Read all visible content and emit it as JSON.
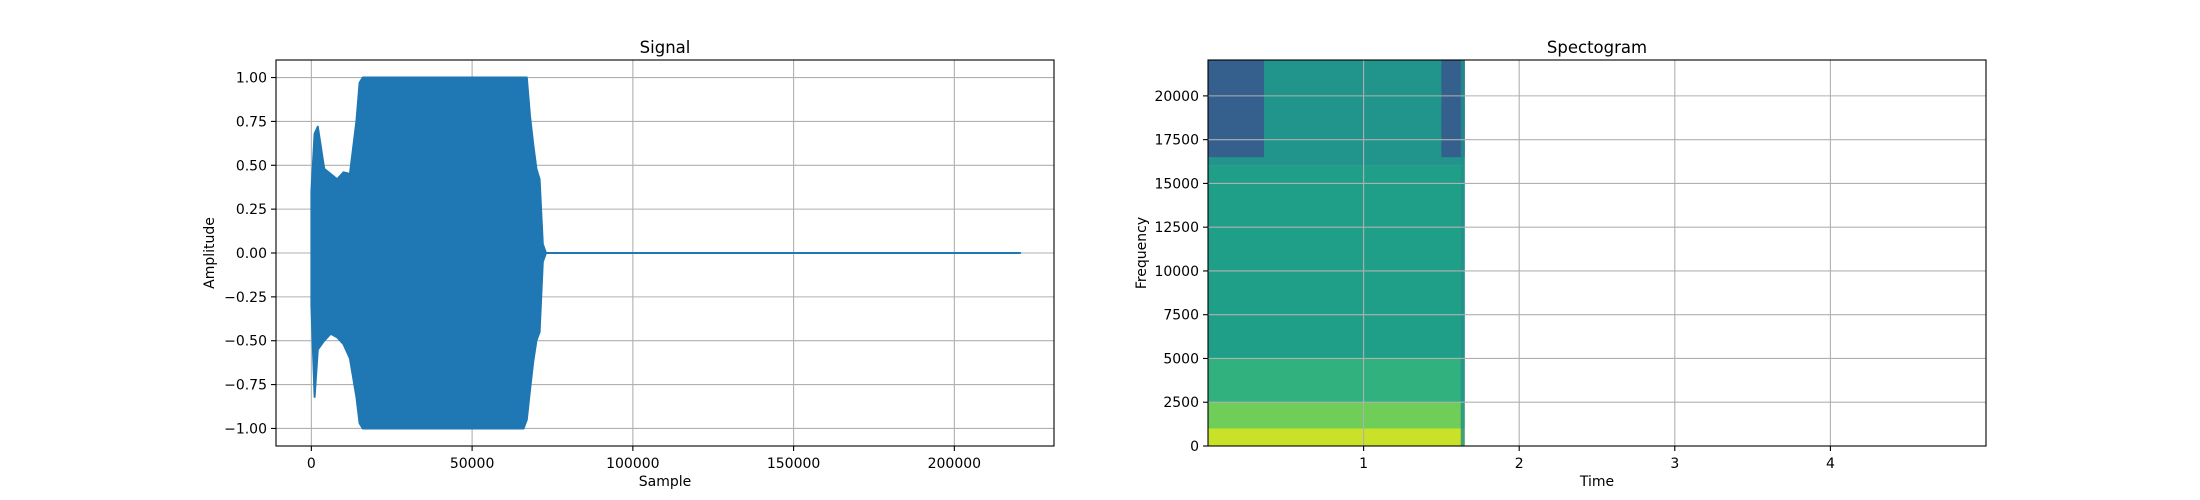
{
  "chart_data": [
    {
      "type": "line",
      "title": "Signal",
      "xlabel": "Sample",
      "ylabel": "Amplitude",
      "xlim": [
        -11000,
        231000
      ],
      "ylim": [
        -1.1,
        1.1
      ],
      "grid": true,
      "color": "#1f77b4",
      "xticks": [
        0,
        50000,
        100000,
        150000,
        200000
      ],
      "xtick_labels": [
        "0",
        "50000",
        "100000",
        "150000",
        "200000"
      ],
      "yticks": [
        1.0,
        0.75,
        0.5,
        0.25,
        0.0,
        -0.25,
        -0.5,
        -0.75,
        -1.0
      ],
      "ytick_labels": [
        "1.00",
        "0.75",
        "0.50",
        "0.25",
        "0.00",
        "−0.25",
        "−0.50",
        "−0.75",
        "−1.00"
      ],
      "series": [
        {
          "x": [
            0,
            1000,
            2000,
            4000,
            6000,
            8000,
            10000,
            12000,
            14000,
            15000,
            16000,
            20000,
            30000,
            40000,
            50000,
            60000,
            64000,
            66000,
            67000,
            68000,
            69000,
            70000,
            71000,
            72000,
            73000,
            100000,
            150000,
            200000,
            220500
          ],
          "upper": [
            0.35,
            0.68,
            0.72,
            0.48,
            0.45,
            0.42,
            0.46,
            0.45,
            0.75,
            0.97,
            1.0,
            1.0,
            1.0,
            1.0,
            1.0,
            1.0,
            1.0,
            1.0,
            1.0,
            0.78,
            0.62,
            0.48,
            0.42,
            0.05,
            0.0,
            0.0,
            0.0,
            0.0,
            0.0
          ],
          "lower": [
            -0.3,
            -0.82,
            -0.55,
            -0.5,
            -0.46,
            -0.48,
            -0.52,
            -0.6,
            -0.82,
            -0.97,
            -1.0,
            -1.0,
            -1.0,
            -1.0,
            -1.0,
            -1.0,
            -1.0,
            -1.0,
            -0.95,
            -0.78,
            -0.62,
            -0.5,
            -0.45,
            -0.05,
            0.0,
            0.0,
            0.0,
            0.0,
            0.0
          ]
        }
      ]
    },
    {
      "type": "heatmap",
      "title": "Spectogram",
      "xlabel": "Time",
      "ylabel": "Frequency",
      "xlim": [
        0.0,
        5.0
      ],
      "ylim": [
        0,
        22050
      ],
      "grid": true,
      "colormap": "viridis",
      "xticks": [
        1,
        2,
        3,
        4
      ],
      "xtick_labels": [
        "1",
        "2",
        "3",
        "4"
      ],
      "yticks": [
        0,
        2500,
        5000,
        7500,
        10000,
        12500,
        15000,
        17500,
        20000
      ],
      "ytick_labels": [
        "0",
        "2500",
        "5000",
        "7500",
        "10000",
        "12500",
        "15000",
        "17500",
        "20000"
      ],
      "signal_end_time": 1.65,
      "low_band_end_time": 0.36,
      "high_band_start_time": 1.5,
      "freq_bands": [
        {
          "from": 0,
          "to": 1000,
          "level": 0.92
        },
        {
          "from": 1000,
          "to": 2500,
          "level": 0.78
        },
        {
          "from": 2500,
          "to": 5000,
          "level": 0.64
        },
        {
          "from": 5000,
          "to": 16000,
          "level": 0.56
        },
        {
          "from": 16000,
          "to": 22050,
          "level": 0.52
        }
      ],
      "masked_band": {
        "from": 16500,
        "to": 22050,
        "level": 0.3
      }
    }
  ]
}
